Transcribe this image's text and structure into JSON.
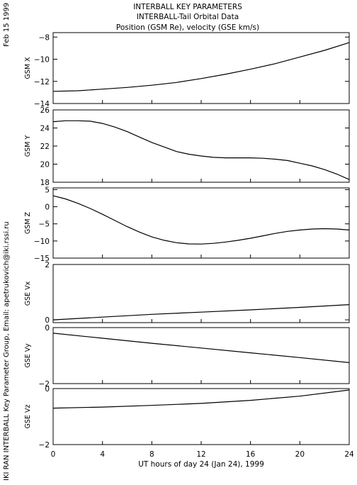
{
  "header": {
    "lines": [
      "INTERBALL KEY PARAMETERS",
      "INTERBALL-Tail Orbital Data",
      "Position (GSM Re), velocity (GSE km/s)"
    ]
  },
  "side_labels": {
    "top": "Feb 15 1999",
    "bottom": "IKI RAN INTERBALL Key Parameter Group, Email: apetrukovich@iki.rssi.ru"
  },
  "chart_data": {
    "type": "line",
    "xlabel": "UT hours of day  24 (Jan 24), 1999",
    "xlim": [
      0,
      24
    ],
    "xticks": [
      "0",
      "4",
      "8",
      "12",
      "16",
      "20",
      "24"
    ],
    "panels": [
      {
        "name": "gsm-x",
        "ylabel": "GSM X",
        "ylim": [
          -14,
          -7.6
        ],
        "yticks": [
          -14,
          -12,
          -10,
          -8
        ],
        "ytick_labels": [
          "−14",
          "−12",
          "−10",
          "−8"
        ],
        "x": [
          0,
          2,
          4,
          6,
          8,
          10,
          12,
          14,
          16,
          18,
          20,
          22,
          24
        ],
        "y": [
          -12.9,
          -12.85,
          -12.7,
          -12.55,
          -12.35,
          -12.1,
          -11.75,
          -11.35,
          -10.9,
          -10.4,
          -9.8,
          -9.2,
          -8.5
        ]
      },
      {
        "name": "gsm-y",
        "ylabel": "GSM Y",
        "ylim": [
          18,
          26
        ],
        "yticks": [
          18,
          20,
          22,
          24,
          26
        ],
        "ytick_labels": [
          "18",
          "20",
          "22",
          "24",
          "26"
        ],
        "x": [
          0,
          1,
          2,
          3,
          4,
          5,
          6,
          7,
          8,
          9,
          10,
          11,
          12,
          13,
          14,
          15,
          16,
          17,
          18,
          19,
          20,
          21,
          22,
          23,
          24
        ],
        "y": [
          24.7,
          24.8,
          24.8,
          24.75,
          24.5,
          24.1,
          23.6,
          23.0,
          22.4,
          21.9,
          21.4,
          21.1,
          20.9,
          20.75,
          20.7,
          20.7,
          20.7,
          20.65,
          20.55,
          20.4,
          20.1,
          19.8,
          19.4,
          18.9,
          18.3
        ]
      },
      {
        "name": "gsm-z",
        "ylabel": "GSM Z",
        "ylim": [
          -15,
          5.5
        ],
        "yticks": [
          -15,
          -10,
          -5,
          0,
          5
        ],
        "ytick_labels": [
          "−15",
          "−10",
          "−5",
          "0",
          "5"
        ],
        "x": [
          0,
          1,
          2,
          3,
          4,
          5,
          6,
          7,
          8,
          9,
          10,
          11,
          12,
          13,
          14,
          15,
          16,
          17,
          18,
          19,
          20,
          21,
          22,
          23,
          24
        ],
        "y": [
          3.2,
          2.3,
          1.0,
          -0.5,
          -2.2,
          -4.0,
          -5.8,
          -7.4,
          -8.8,
          -9.8,
          -10.5,
          -10.85,
          -10.9,
          -10.7,
          -10.3,
          -9.8,
          -9.2,
          -8.5,
          -7.8,
          -7.2,
          -6.8,
          -6.5,
          -6.4,
          -6.5,
          -6.8
        ]
      },
      {
        "name": "gse-vx",
        "ylabel": "GSE Vx",
        "ylim": [
          -0.1,
          2.0
        ],
        "yticks": [
          0,
          2
        ],
        "ytick_labels": [
          "0",
          "2"
        ],
        "x": [
          0,
          4,
          8,
          12,
          16,
          20,
          24
        ],
        "y": [
          0.0,
          0.1,
          0.2,
          0.28,
          0.36,
          0.45,
          0.55
        ]
      },
      {
        "name": "gse-vy",
        "ylabel": "GSE Vy",
        "ylim": [
          -2.0,
          0.0
        ],
        "yticks": [
          -2,
          0
        ],
        "ytick_labels": [
          "−2",
          "0"
        ],
        "x": [
          0,
          4,
          8,
          12,
          16,
          20,
          24
        ],
        "y": [
          -0.2,
          -0.38,
          -0.56,
          -0.73,
          -0.9,
          -1.07,
          -1.25
        ]
      },
      {
        "name": "gse-vz",
        "ylabel": "GSE Vz",
        "ylim": [
          -2.0,
          0.0
        ],
        "yticks": [
          -2,
          0
        ],
        "ytick_labels": [
          "−2",
          "0"
        ],
        "x": [
          0,
          4,
          8,
          12,
          16,
          20,
          24
        ],
        "y": [
          -0.7,
          -0.66,
          -0.6,
          -0.53,
          -0.42,
          -0.27,
          -0.05
        ]
      }
    ]
  }
}
